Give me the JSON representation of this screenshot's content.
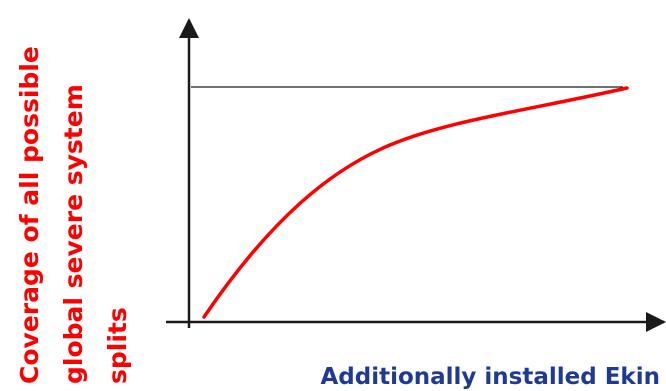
{
  "diagram": {
    "y_label_lines": [
      "Coverage of all possible",
      "global severe system",
      "splits"
    ],
    "x_label": "Additionally installed Ekin",
    "colors": {
      "y_label": "#ff0000",
      "x_label": "#1f3a93",
      "curve": "#ff0000",
      "axes": "#1a1a1a",
      "limit_line": "#1a1a1a"
    }
  }
}
